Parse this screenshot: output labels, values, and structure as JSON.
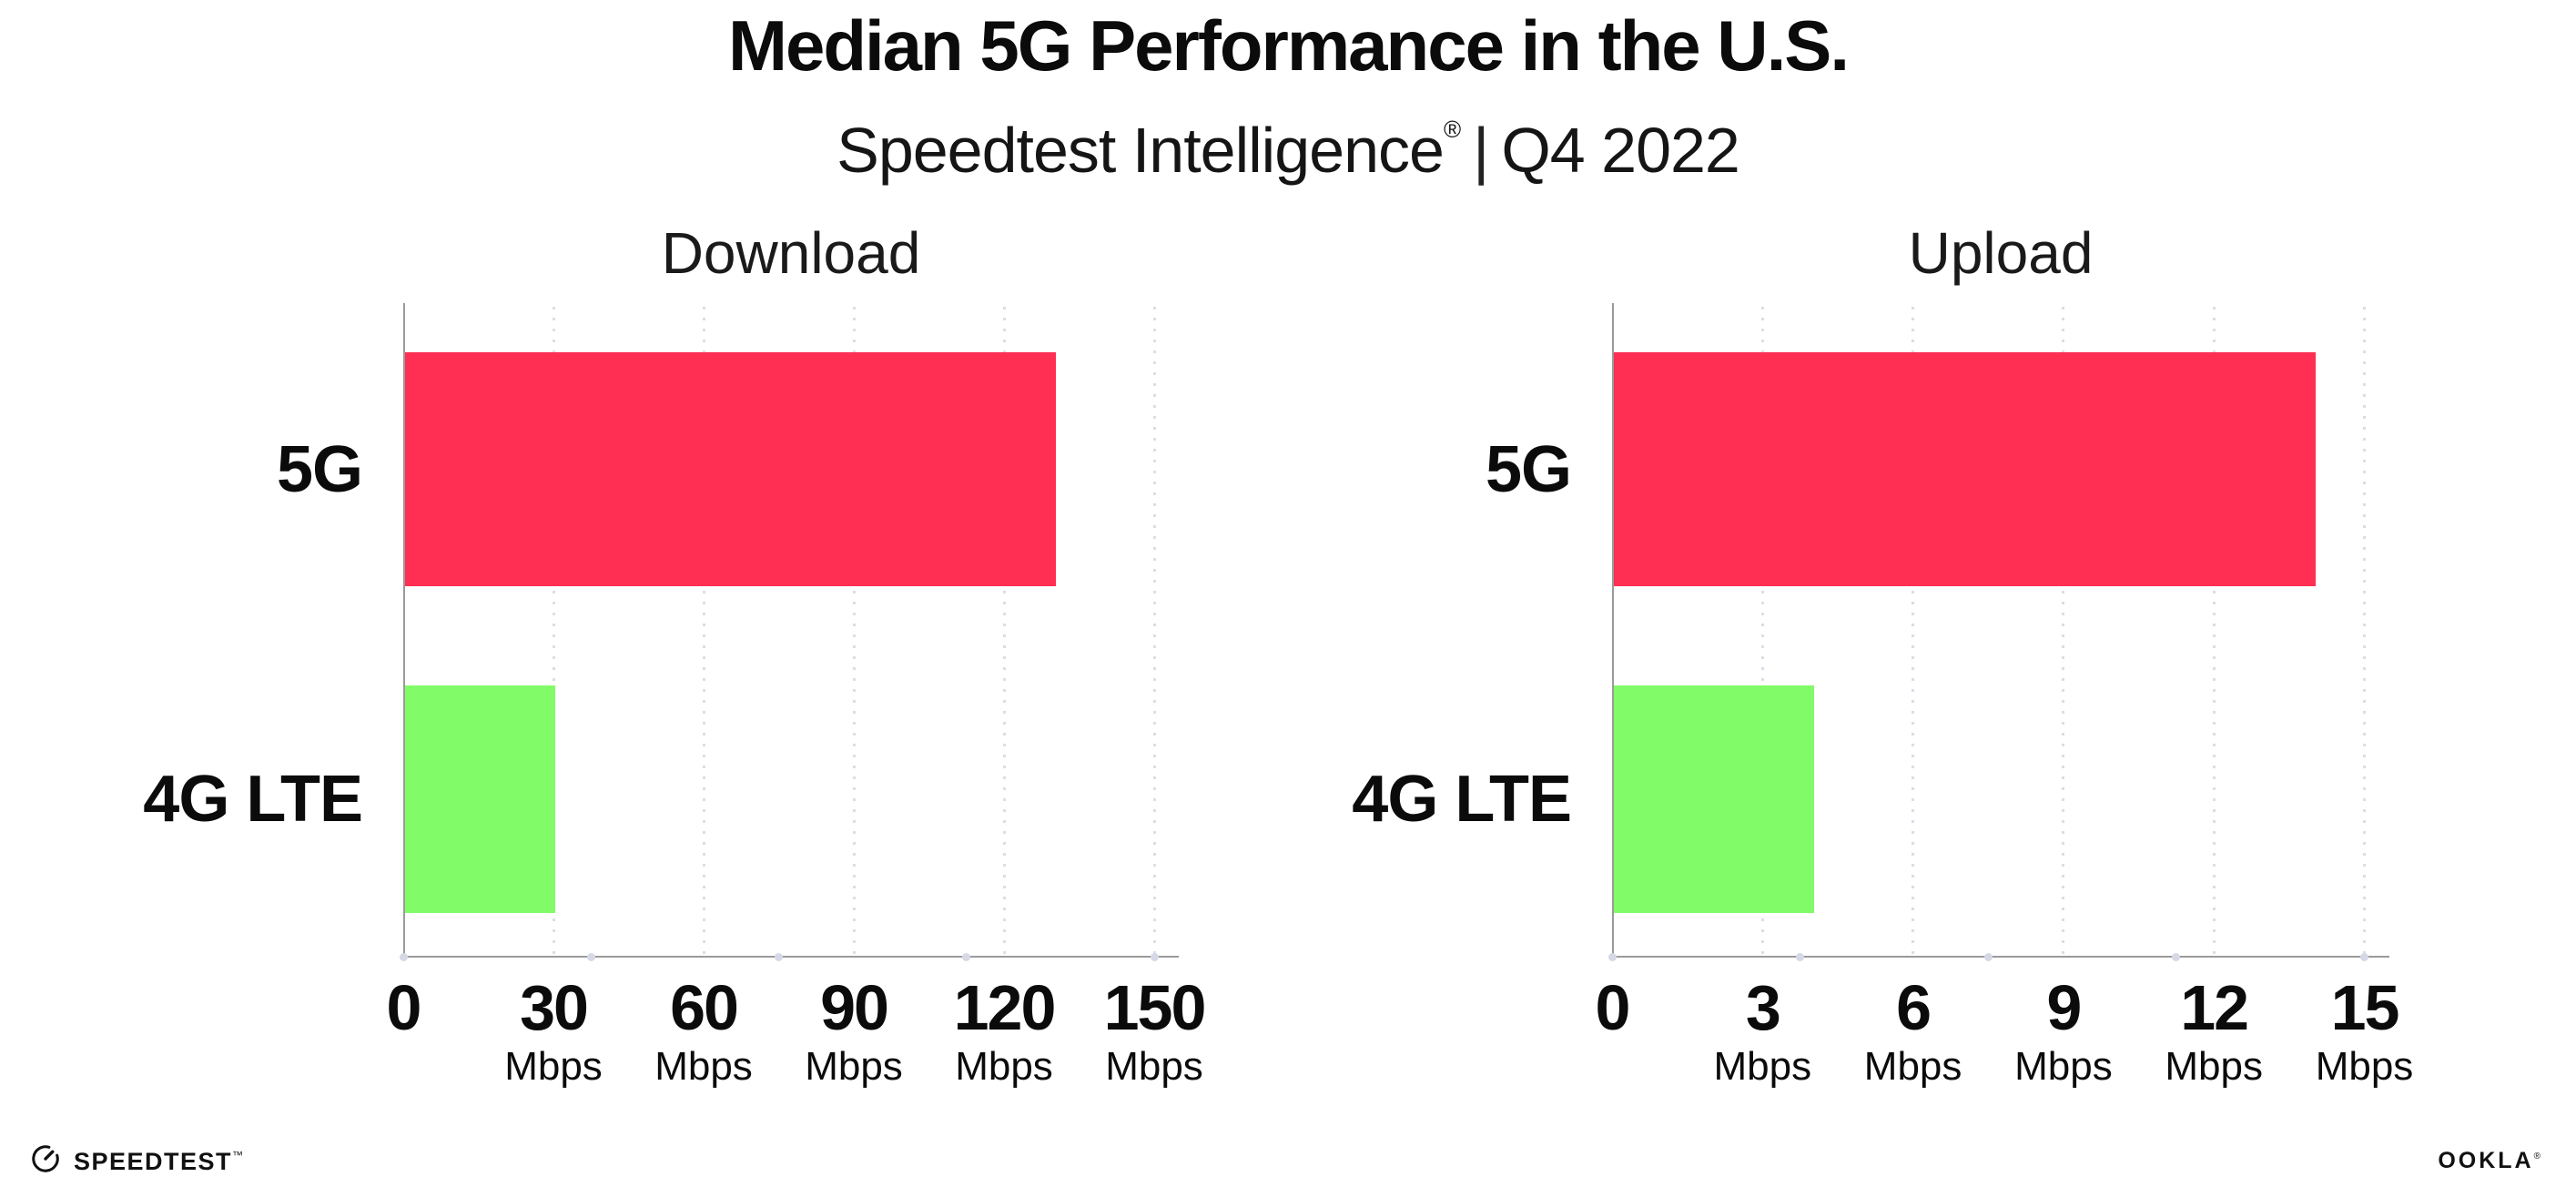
{
  "header": {
    "title": "Median 5G Performance in the U.S.",
    "subtitle_brand": "Speedtest Intelligence",
    "subtitle_reg": "®",
    "subtitle_divider": "|",
    "subtitle_period": "Q4 2022"
  },
  "chart_data": [
    {
      "type": "bar",
      "orientation": "horizontal",
      "title": "Download",
      "categories": [
        "5G",
        "4G LTE"
      ],
      "values": [
        130,
        30
      ],
      "unit": "Mbps",
      "xlabel": "",
      "ylabel": "",
      "xlim": [
        0,
        150
      ],
      "xticks": [
        0,
        30,
        60,
        90,
        120,
        150
      ],
      "bar_colors": [
        "#ff2f54",
        "#81fc68"
      ],
      "grid": "dotted vertical gridlines at labeled ticks",
      "legend": "none"
    },
    {
      "type": "bar",
      "orientation": "horizontal",
      "title": "Upload",
      "categories": [
        "5G",
        "4G LTE"
      ],
      "values": [
        14,
        4
      ],
      "unit": "Mbps",
      "xlabel": "",
      "ylabel": "",
      "xlim": [
        0,
        15
      ],
      "xticks": [
        0,
        3,
        6,
        9,
        12,
        15
      ],
      "bar_colors": [
        "#ff2f54",
        "#81fc68"
      ],
      "grid": "dotted vertical gridlines at labeled ticks",
      "legend": "none"
    }
  ],
  "footer": {
    "speedtest": {
      "label": "SPEEDTEST",
      "mark": "™"
    },
    "ookla": {
      "label": "OOKLA",
      "mark": "®"
    }
  }
}
